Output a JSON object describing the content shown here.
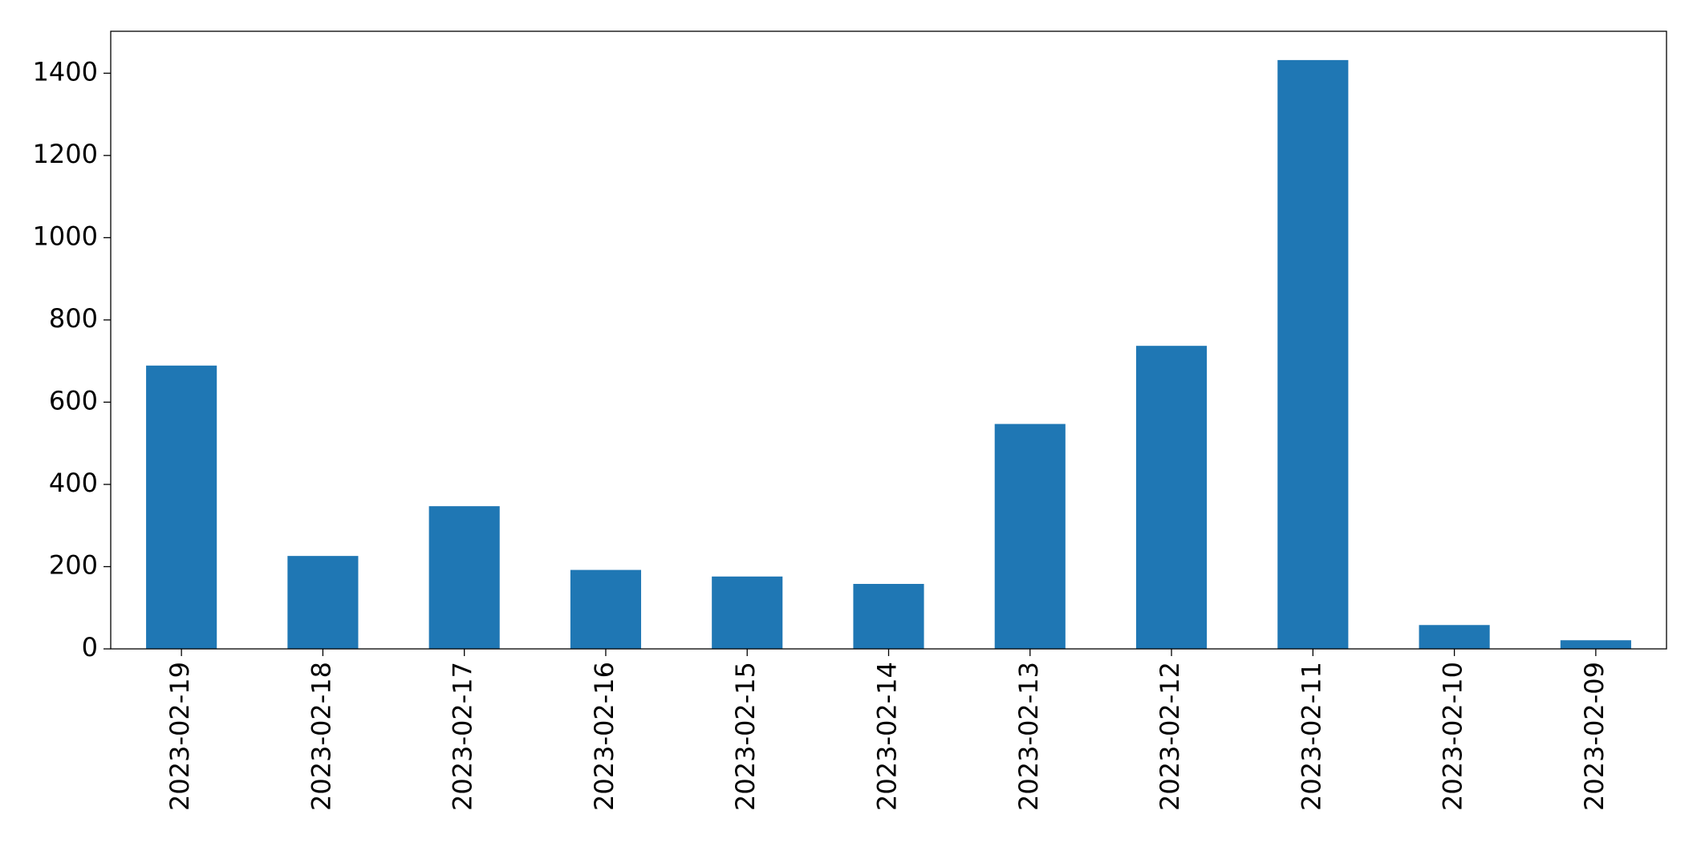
{
  "chart_data": {
    "type": "bar",
    "categories": [
      "2023-02-19",
      "2023-02-18",
      "2023-02-17",
      "2023-02-16",
      "2023-02-15",
      "2023-02-14",
      "2023-02-13",
      "2023-02-12",
      "2023-02-11",
      "2023-02-10",
      "2023-02-09"
    ],
    "values": [
      689,
      226,
      347,
      192,
      176,
      158,
      547,
      737,
      1432,
      58,
      21
    ],
    "color": "#1f77b4",
    "ylim": [
      0,
      1502
    ],
    "yticks": [
      0,
      200,
      400,
      600,
      800,
      1000,
      1200,
      1400
    ],
    "grid": false
  }
}
